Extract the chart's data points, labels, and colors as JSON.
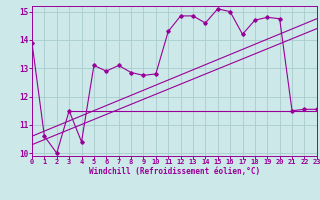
{
  "xlabel": "Windchill (Refroidissement éolien,°C)",
  "bg_color": "#cce8e8",
  "grid_color": "#aacccc",
  "line_color": "#990099",
  "xlim": [
    0,
    23
  ],
  "ylim": [
    9.9,
    15.2
  ],
  "yticks": [
    10,
    11,
    12,
    13,
    14,
    15
  ],
  "xticks": [
    0,
    1,
    2,
    3,
    4,
    5,
    6,
    7,
    8,
    9,
    10,
    11,
    12,
    13,
    14,
    15,
    16,
    17,
    18,
    19,
    20,
    21,
    22,
    23
  ],
  "main_x": [
    0,
    1,
    2,
    3,
    4,
    5,
    6,
    7,
    8,
    9,
    10,
    11,
    12,
    13,
    14,
    15,
    16,
    17,
    18,
    19,
    20,
    21,
    22,
    23
  ],
  "main_y": [
    13.9,
    10.6,
    10.0,
    11.5,
    10.4,
    13.1,
    12.9,
    13.1,
    12.85,
    12.75,
    12.8,
    14.3,
    14.85,
    14.85,
    14.6,
    15.1,
    15.0,
    14.2,
    14.7,
    14.8,
    14.75,
    11.5,
    11.55,
    11.55
  ],
  "line1_x": [
    0,
    23
  ],
  "line1_y": [
    10.6,
    14.75
  ],
  "line2_x": [
    0,
    23
  ],
  "line2_y": [
    10.3,
    14.4
  ],
  "hline_y": 11.5,
  "hline_x_start": 3,
  "hline_x_end": 23,
  "tick_fontsize": 5,
  "xlabel_fontsize": 5.5
}
